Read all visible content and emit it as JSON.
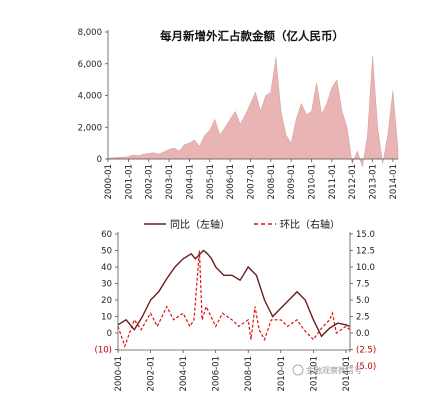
{
  "chart_data": [
    {
      "type": "area",
      "title": "每月新增外汇占款金额（亿人民币）",
      "ylim": [
        -500,
        8000
      ],
      "y_ticks": [
        "8,000",
        "6,000",
        "4,000",
        "2,000",
        "0"
      ],
      "x_ticks": [
        "2000-01",
        "2001-01",
        "2002-01",
        "2003-01",
        "2004-01",
        "2005-01",
        "2006-01",
        "2007-01",
        "2008-01",
        "2009-01",
        "2010-01",
        "2011-01",
        "2012-01",
        "2013-01",
        "2014-01"
      ],
      "x_range": [
        "2000-01",
        "2014-04"
      ],
      "color": "#e8b4b4",
      "grid": false,
      "series": [
        {
          "x": [
            "2000-01",
            "2000-04",
            "2000-07",
            "2000-10",
            "2001-01",
            "2001-04",
            "2001-07",
            "2001-10",
            "2002-01",
            "2002-04",
            "2002-07",
            "2002-10",
            "2003-01",
            "2003-04",
            "2003-07",
            "2003-10",
            "2004-01",
            "2004-04",
            "2004-07",
            "2004-10",
            "2005-01",
            "2005-04",
            "2005-07",
            "2005-10",
            "2006-01",
            "2006-04",
            "2006-07",
            "2006-10",
            "2007-01",
            "2007-04",
            "2007-07",
            "2007-10",
            "2008-01",
            "2008-04",
            "2008-07",
            "2008-10",
            "2009-01",
            "2009-04",
            "2009-07",
            "2009-10",
            "2010-01",
            "2010-04",
            "2010-07",
            "2010-10",
            "2011-01",
            "2011-04",
            "2011-07",
            "2011-10",
            "2012-01",
            "2012-04",
            "2012-07",
            "2012-10",
            "2013-01",
            "2013-04",
            "2013-07",
            "2013-10",
            "2014-01",
            "2014-04"
          ],
          "values": [
            50,
            80,
            100,
            120,
            150,
            250,
            200,
            300,
            350,
            400,
            300,
            450,
            600,
            700,
            500,
            900,
            1000,
            1200,
            800,
            1500,
            1800,
            2500,
            1500,
            2000,
            2500,
            3000,
            2200,
            2800,
            3500,
            4200,
            3000,
            4000,
            4200,
            6400,
            3000,
            1500,
            1000,
            2500,
            3500,
            2800,
            3000,
            4800,
            2800,
            3500,
            4500,
            5000,
            3000,
            2000,
            -300,
            500,
            -500,
            1500,
            6500,
            2000,
            -300,
            1500,
            4300,
            600
          ]
        }
      ]
    },
    {
      "type": "line",
      "legend": [
        "同比（左轴）",
        "环比（右轴）"
      ],
      "legend_position": "top",
      "y_left_ticks": [
        "60",
        "50",
        "40",
        "30",
        "20",
        "10",
        "0",
        "(10)"
      ],
      "y_left_range": [
        -10,
        60
      ],
      "y_right_ticks": [
        "15.0",
        "12.5",
        "10.0",
        "7.5",
        "5.0",
        "2.5",
        "0.0",
        "(2.5)",
        "(5.0)"
      ],
      "y_right_range": [
        -5,
        15
      ],
      "x_ticks": [
        "2000-01",
        "2002-01",
        "2004-01",
        "2006-01",
        "2008-01",
        "2010-01",
        "2012-01",
        "2014-01"
      ],
      "x_range": [
        "2000-01",
        "2014-04"
      ],
      "colors": {
        "yoy": "#6b1f1f",
        "mom": "#e01010"
      },
      "series": [
        {
          "name": "同比（左轴）",
          "axis": "left",
          "x": [
            "2000-01",
            "2000-07",
            "2001-01",
            "2001-07",
            "2002-01",
            "2002-07",
            "2003-01",
            "2003-07",
            "2004-01",
            "2004-07",
            "2004-10",
            "2005-04",
            "2005-07",
            "2005-10",
            "2006-01",
            "2006-07",
            "2007-01",
            "2007-07",
            "2008-01",
            "2008-07",
            "2009-01",
            "2009-07",
            "2010-01",
            "2010-07",
            "2011-01",
            "2011-07",
            "2012-01",
            "2012-07",
            "2013-01",
            "2013-07",
            "2014-01",
            "2014-04"
          ],
          "values": [
            5,
            8,
            2,
            10,
            20,
            25,
            33,
            40,
            45,
            48,
            45,
            50,
            48,
            45,
            40,
            35,
            35,
            32,
            40,
            35,
            20,
            10,
            15,
            20,
            25,
            20,
            8,
            -2,
            3,
            6,
            5,
            4
          ]
        },
        {
          "name": "环比（右轴）",
          "axis": "right",
          "x": [
            "2000-01",
            "2000-06",
            "2001-01",
            "2001-06",
            "2002-01",
            "2002-06",
            "2003-01",
            "2003-06",
            "2004-01",
            "2004-06",
            "2004-09",
            "2005-01",
            "2005-03",
            "2005-06",
            "2006-01",
            "2006-06",
            "2007-01",
            "2007-06",
            "2008-01",
            "2008-03",
            "2008-06",
            "2008-09",
            "2009-01",
            "2009-06",
            "2010-01",
            "2010-06",
            "2011-01",
            "2011-06",
            "2012-01",
            "2012-06",
            "2013-01",
            "2013-03",
            "2013-06",
            "2014-01",
            "2014-04"
          ],
          "values": [
            1,
            -2,
            2,
            0.5,
            3,
            1,
            4,
            2,
            3,
            1,
            2,
            12.5,
            2,
            4,
            1,
            3,
            2,
            1,
            2,
            -1,
            4,
            0.5,
            -1,
            2,
            2,
            1,
            2,
            0.5,
            -1,
            0.5,
            2,
            3,
            0,
            1,
            0.5
          ]
        }
      ]
    }
  ],
  "watermark": "金融观察微信号"
}
